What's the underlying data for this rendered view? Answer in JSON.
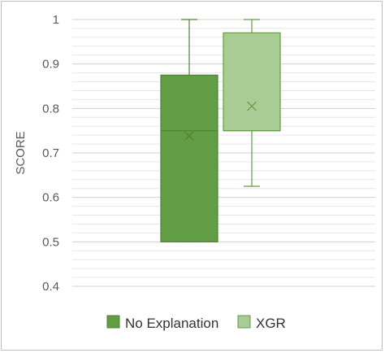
{
  "chart_data": {
    "type": "box",
    "title": "",
    "xlabel": "",
    "ylabel": "SCORE",
    "ylim": [
      0.4,
      1.0
    ],
    "yticks": [
      0.4,
      0.5,
      0.6,
      0.7,
      0.8,
      0.9,
      1.0
    ],
    "ytick_labels": [
      "0.4",
      "0.5",
      "0.6",
      "0.7",
      "0.8",
      "0.9",
      "1"
    ],
    "minor_grid_step": 0.02,
    "grid": true,
    "legend_position": "bottom",
    "series": [
      {
        "name": "No Explanation",
        "min": 0.5,
        "q1": 0.5,
        "median": 0.75,
        "q3": 0.875,
        "max": 1.0,
        "mean": 0.738,
        "fill": "#629c44",
        "stroke": "#4f8236"
      },
      {
        "name": "XGR",
        "min": 0.625,
        "q1": 0.75,
        "median": 0.75,
        "q3": 0.97,
        "max": 1.0,
        "mean": 0.805,
        "fill": "#a9cc94",
        "stroke": "#629c44"
      }
    ]
  },
  "colors": {
    "grid": "#d9d9d9",
    "axis": "#bfbfbf",
    "text": "#595959"
  }
}
